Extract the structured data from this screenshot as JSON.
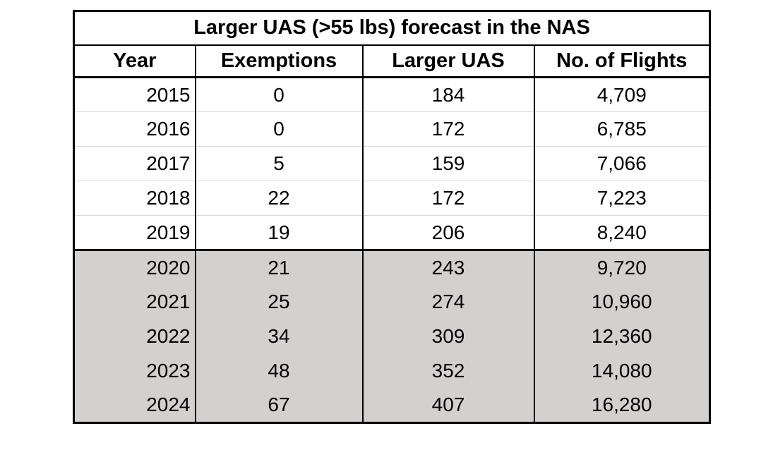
{
  "chart_data": {
    "type": "table",
    "title": "Larger UAS (>55 lbs) forecast in the NAS",
    "columns": [
      "Year",
      "Exemptions",
      "Larger UAS",
      "No. of Flights"
    ],
    "rows": [
      [
        "2015",
        "0",
        "184",
        "4,709"
      ],
      [
        "2016",
        "0",
        "172",
        "6,785"
      ],
      [
        "2017",
        "5",
        "159",
        "7,066"
      ],
      [
        "2018",
        "22",
        "172",
        "7,223"
      ],
      [
        "2019",
        "19",
        "206",
        "8,240"
      ],
      [
        "2020",
        "21",
        "243",
        "9,720"
      ],
      [
        "2021",
        "25",
        "274",
        "10,960"
      ],
      [
        "2022",
        "34",
        "309",
        "12,360"
      ],
      [
        "2023",
        "48",
        "352",
        "14,080"
      ],
      [
        "2024",
        "67",
        "407",
        "16,280"
      ]
    ],
    "shaded_forecast_years": [
      "2020",
      "2021",
      "2022",
      "2023",
      "2024"
    ],
    "colors": {
      "forecast_row_bg": "#d3d0d0",
      "border": "#000000",
      "row_divider": "#d9d9d9"
    }
  }
}
